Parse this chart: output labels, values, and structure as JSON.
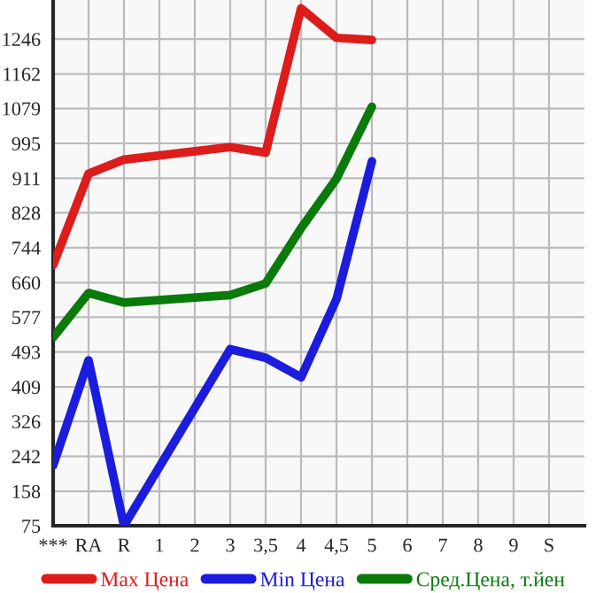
{
  "chart_data": {
    "type": "line",
    "categories": [
      "***",
      "RA",
      "R",
      "1",
      "2",
      "3",
      "3,5",
      "4",
      "4,5",
      "5",
      "6",
      "7",
      "8",
      "9",
      "S"
    ],
    "series": [
      {
        "name": "Max Цена",
        "color": "#dd1c1c",
        "values": [
          702,
          922,
          956,
          null,
          null,
          986,
          973,
          1320,
          1249,
          1244,
          null,
          null,
          null,
          null,
          null
        ]
      },
      {
        "name": "Min Цена",
        "color": "#1c1cdd",
        "values": [
          220,
          473,
          75,
          null,
          null,
          500,
          479,
          432,
          620,
          952,
          null,
          null,
          null,
          null,
          null
        ]
      },
      {
        "name": "Сред.Цена, т.йен",
        "color": "#0a7a0a",
        "values": [
          528,
          635,
          612,
          null,
          null,
          630,
          658,
          791,
          910,
          1083,
          null,
          null,
          null,
          null,
          null
        ]
      }
    ],
    "ylim": [
      75,
      1340
    ],
    "yticks": [
      75,
      158,
      242,
      326,
      409,
      493,
      577,
      660,
      744,
      828,
      911,
      995,
      1079,
      1162,
      1246
    ],
    "grid": true,
    "legend": "bottom",
    "marker": "none",
    "line_style": "solid"
  }
}
